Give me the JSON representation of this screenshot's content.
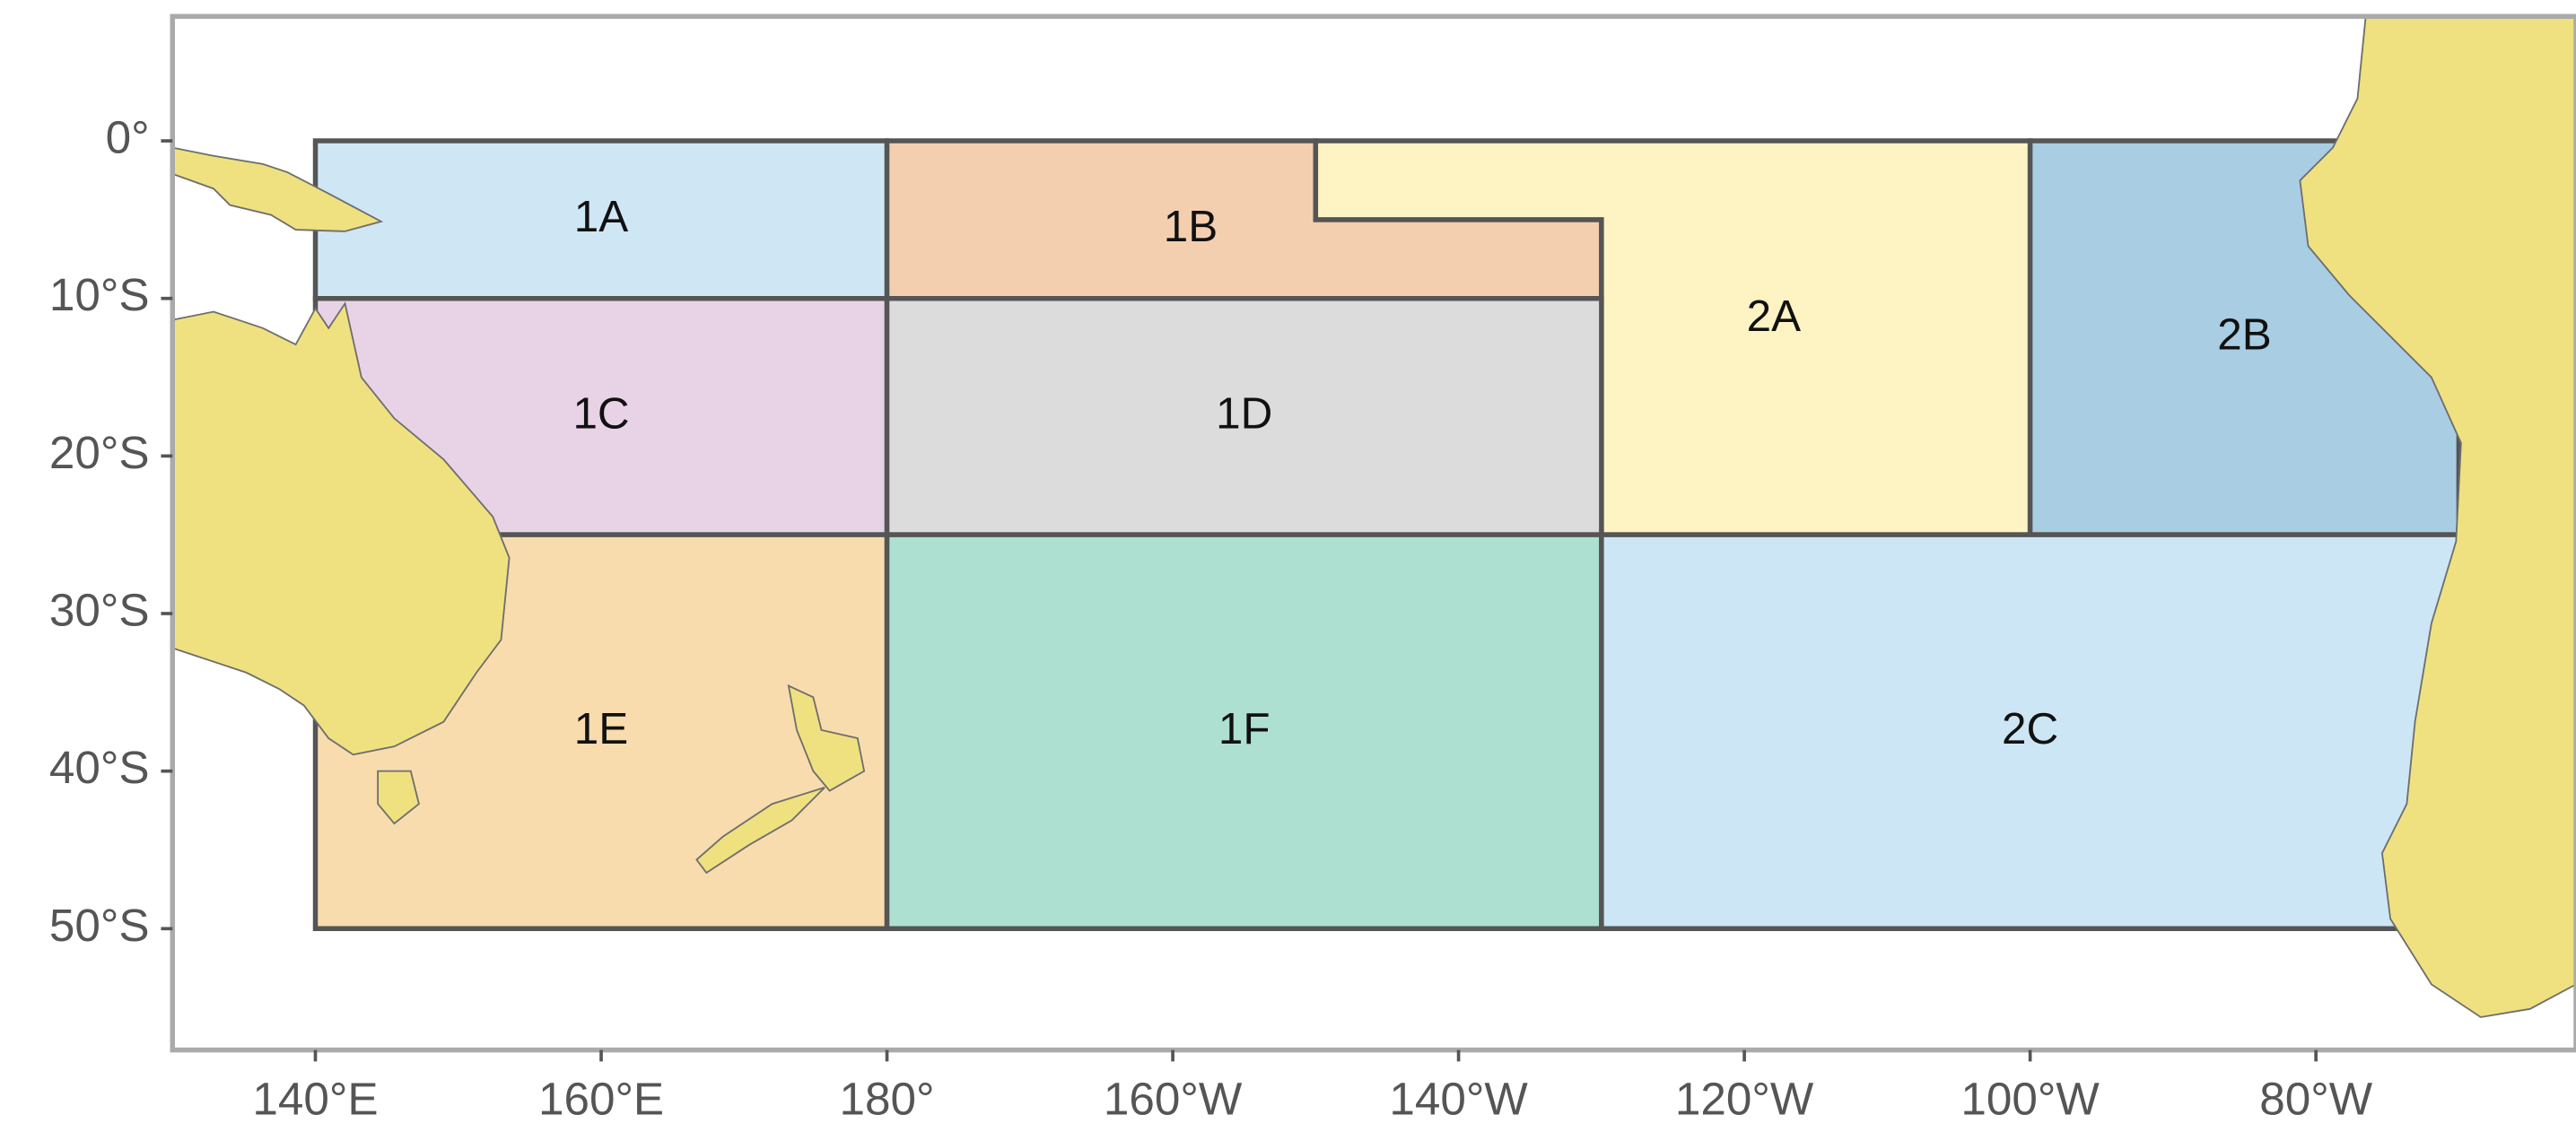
{
  "map": {
    "xlim": [
      130,
      298.2
    ],
    "ylim": [
      -57.7,
      7.9
    ],
    "xticks": [
      {
        "value": 140,
        "label": "140°E"
      },
      {
        "value": 160,
        "label": "160°E"
      },
      {
        "value": 180,
        "label": "180°"
      },
      {
        "value": 200,
        "label": "160°W"
      },
      {
        "value": 220,
        "label": "140°W"
      },
      {
        "value": 240,
        "label": "120°W"
      },
      {
        "value": 260,
        "label": "100°W"
      },
      {
        "value": 280,
        "label": "80°W"
      }
    ],
    "yticks": [
      {
        "value": 0,
        "label": "0°"
      },
      {
        "value": -10,
        "label": "10°S"
      },
      {
        "value": -20,
        "label": "20°S"
      },
      {
        "value": -30,
        "label": "30°S"
      },
      {
        "value": -40,
        "label": "40°S"
      },
      {
        "value": -50,
        "label": "50°S"
      }
    ],
    "regions": [
      {
        "label": "1A",
        "color": "#cfe6f5",
        "lon": [
          140,
          180,
          180,
          140
        ],
        "lat": [
          0,
          0,
          -10,
          -10
        ]
      },
      {
        "label": "1B",
        "color": "#f3cfb0",
        "lon": [
          180,
          210,
          210,
          230,
          230,
          180
        ],
        "lat": [
          0,
          0,
          -5,
          -5,
          -10,
          -10
        ]
      },
      {
        "label": "2A",
        "color": "#fdf3c3",
        "lon": [
          210,
          260,
          260,
          230,
          230,
          210
        ],
        "lat": [
          0,
          0,
          -25,
          -25,
          -5,
          -5
        ]
      },
      {
        "label": "2B",
        "color": "#a9cde3",
        "lon": [
          260,
          290,
          290,
          260
        ],
        "lat": [
          0,
          0,
          -25,
          -25
        ]
      },
      {
        "label": "1C",
        "color": "#e8d3e6",
        "lon": [
          140,
          180,
          180,
          140
        ],
        "lat": [
          -10,
          -10,
          -25,
          -25
        ]
      },
      {
        "label": "1D",
        "color": "#dcdcdc",
        "lon": [
          180,
          230,
          230,
          180
        ],
        "lat": [
          -10,
          -10,
          -25,
          -25
        ]
      },
      {
        "label": "1E",
        "color": "#f8dcad",
        "lon": [
          140,
          180,
          180,
          140
        ],
        "lat": [
          -25,
          -25,
          -50,
          -50
        ]
      },
      {
        "label": "1F",
        "color": "#aee0d1",
        "lon": [
          180,
          230,
          230,
          180
        ],
        "lat": [
          -25,
          -25,
          -50,
          -50
        ]
      },
      {
        "label": "2C",
        "color": "#cce6f5",
        "lon": [
          230,
          290,
          290,
          230
        ],
        "lat": [
          -25,
          -25,
          -50,
          -50
        ]
      }
    ]
  }
}
